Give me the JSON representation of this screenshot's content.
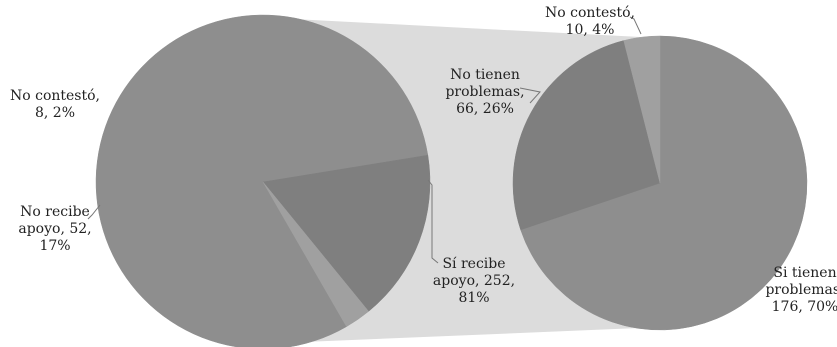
{
  "chart_data": {
    "type": "pie",
    "layout": "pie-of-pie",
    "colors": {
      "connector_band": "#dcdcdc",
      "slice_main": "#8e8e8e",
      "slice_dark": "#7f7f7f",
      "slice_light": "#a0a0a0",
      "leader": "#777777",
      "text": "#222222"
    },
    "charts": [
      {
        "name": "",
        "slices": [
          {
            "category": "Sí recibe apoyo",
            "count": 252,
            "percent": 81,
            "label_lines": [
              "Sí recibe",
              "apoyo, 252,",
              "81%"
            ],
            "color_key": "slice_main"
          },
          {
            "category": "No recibe apoyo",
            "count": 52,
            "percent": 17,
            "label_lines": [
              "No recibe",
              "apoyo, 52,",
              "17%"
            ],
            "color_key": "slice_dark"
          },
          {
            "category": "No contestó",
            "count": 8,
            "percent": 2,
            "label_lines": [
              "No contestó,",
              "8, 2%"
            ],
            "color_key": "slice_light"
          }
        ]
      },
      {
        "name": "",
        "slices": [
          {
            "category": "Si tienen problemas",
            "count": 176,
            "percent": 70,
            "label_lines": [
              "Si tienen",
              "problemas,",
              "176, 70%"
            ],
            "color_key": "slice_main"
          },
          {
            "category": "No tienen problemas",
            "count": 66,
            "percent": 26,
            "label_lines": [
              "No tienen",
              "problemas,",
              "66, 26%"
            ],
            "color_key": "slice_dark"
          },
          {
            "category": "No contestó",
            "count": 10,
            "percent": 4,
            "label_lines": [
              "No contestó,",
              "10, 4%"
            ],
            "color_key": "slice_light"
          }
        ]
      }
    ]
  }
}
